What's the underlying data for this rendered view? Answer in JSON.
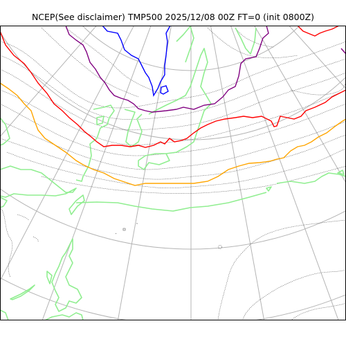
{
  "map": {
    "title": "NCEP(See disclaimer) TMP500 2025/12/08 00Z FT=0 (init 0800Z)",
    "projection": "polar-stereographic",
    "field": "500 hPa temperature",
    "colors": {
      "frame": "#000000",
      "graticule": "#b4b4b4",
      "coastline": "#505050",
      "land_contour": "#90ee90",
      "isotherm_blue": "#0000ff",
      "isotherm_purple": "#800080",
      "isotherm_red": "#ff0000",
      "isotherm_orange": "#ffa500"
    }
  }
}
